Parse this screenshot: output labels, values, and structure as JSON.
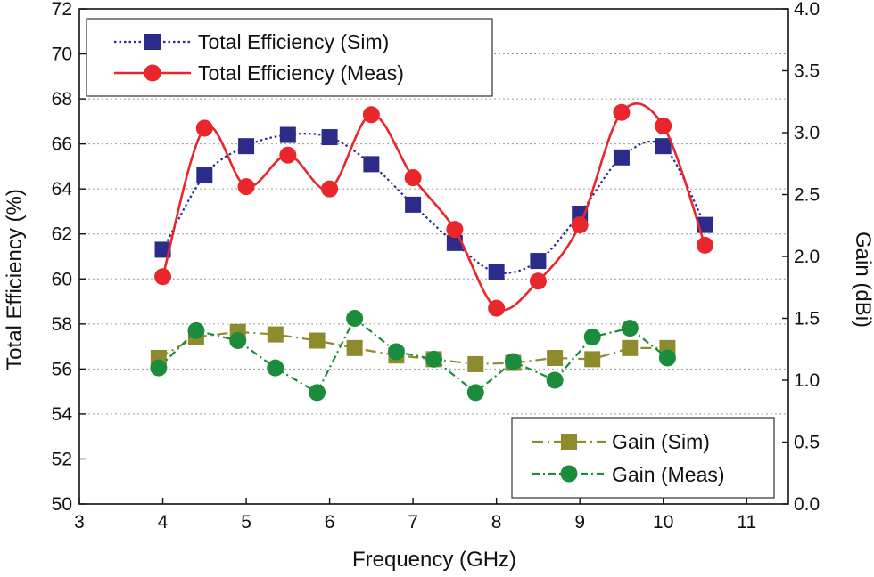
{
  "chart_data": {
    "type": "line",
    "title": "",
    "xlabel": "Frequency (GHz)",
    "ylabel": "Total Efficiency (%)",
    "y2label": "Gain (dBi)",
    "xlim": [
      3,
      11.5
    ],
    "ylim": [
      50,
      72
    ],
    "y2lim": [
      0,
      4
    ],
    "x_ticks": [
      "3",
      "4",
      "5",
      "6",
      "7",
      "8",
      "9",
      "10",
      "11"
    ],
    "y_ticks": [
      "50",
      "52",
      "54",
      "56",
      "58",
      "60",
      "62",
      "64",
      "66",
      "68",
      "70",
      "72"
    ],
    "y2_ticks": [
      "0.0",
      "0.5",
      "1.0",
      "1.5",
      "2.0",
      "2.5",
      "3.0",
      "3.5",
      "4.0"
    ],
    "grid": "horizontal-dotted",
    "legend_top": {
      "placement": "top-left",
      "entries": [
        "Total Efficiency (Sim)",
        "Total Efficiency (Meas)"
      ]
    },
    "legend_bottom": {
      "placement": "bottom-right",
      "entries": [
        "Gain (Sim)",
        "Gain (Meas)"
      ]
    },
    "series": [
      {
        "name": "Total Efficiency (Sim)",
        "axis": "left",
        "color": "#2b2b8a",
        "marker": "square",
        "line": "dotted",
        "x": [
          4.0,
          4.5,
          5.0,
          5.5,
          6.0,
          6.5,
          7.0,
          7.5,
          8.0,
          8.5,
          9.0,
          9.5,
          10.0,
          10.5
        ],
        "y": [
          61.3,
          64.6,
          65.9,
          66.4,
          66.3,
          65.1,
          63.3,
          61.6,
          60.3,
          60.8,
          62.9,
          65.4,
          65.9,
          62.4
        ]
      },
      {
        "name": "Total Efficiency (Meas)",
        "axis": "left",
        "color": "#e8262b",
        "marker": "circle",
        "line": "solid",
        "x": [
          4.0,
          4.5,
          5.0,
          5.5,
          6.0,
          6.5,
          7.0,
          7.5,
          8.0,
          8.5,
          9.0,
          9.5,
          10.0,
          10.5
        ],
        "y": [
          60.1,
          66.7,
          64.1,
          65.5,
          64.0,
          67.3,
          64.5,
          62.2,
          58.7,
          59.9,
          62.4,
          67.4,
          66.8,
          61.5
        ]
      },
      {
        "name": "Gain (Sim)",
        "axis": "right",
        "color": "#8e8b2e",
        "marker": "square",
        "line": "dash-dot",
        "x": [
          3.95,
          4.4,
          4.9,
          5.35,
          5.85,
          6.3,
          6.8,
          7.25,
          7.75,
          8.2,
          8.7,
          9.15,
          9.6,
          10.05
        ],
        "y": [
          1.18,
          1.35,
          1.39,
          1.37,
          1.32,
          1.26,
          1.2,
          1.17,
          1.13,
          1.14,
          1.18,
          1.17,
          1.26,
          1.26
        ]
      },
      {
        "name": "Gain (Meas)",
        "axis": "right",
        "color": "#1a8c3c",
        "marker": "circle",
        "line": "dash-dot",
        "x": [
          3.95,
          4.4,
          4.9,
          5.35,
          5.85,
          6.3,
          6.8,
          7.25,
          7.75,
          8.2,
          8.7,
          9.15,
          9.6,
          10.05
        ],
        "y": [
          1.1,
          1.4,
          1.32,
          1.1,
          0.9,
          1.5,
          1.23,
          1.17,
          0.9,
          1.15,
          1.0,
          1.35,
          1.42,
          1.18
        ]
      }
    ]
  }
}
